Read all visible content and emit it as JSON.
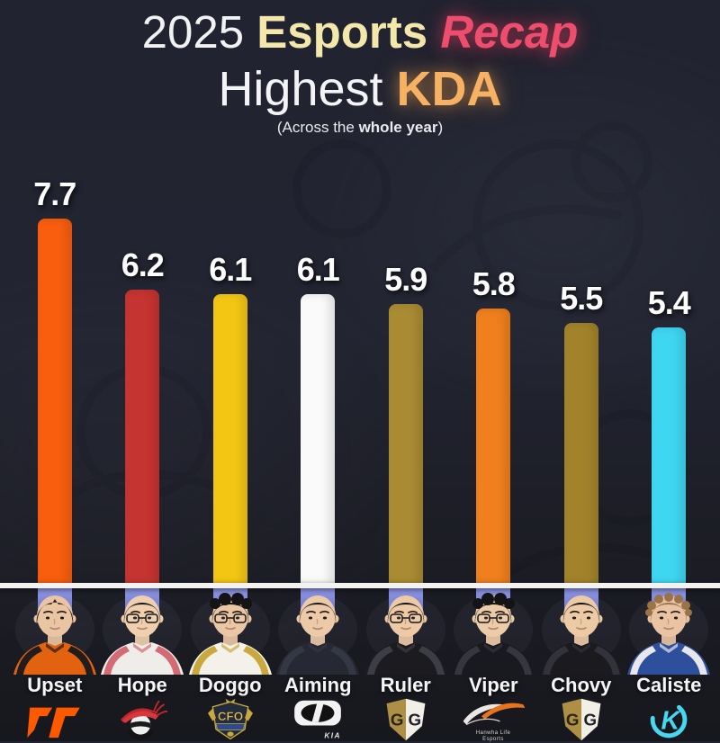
{
  "header": {
    "title_year": "2025",
    "title_word": "Esports",
    "title_accent": "Recap",
    "subtitle_word": "Highest",
    "subtitle_accent": "KDA",
    "note_prefix": "(Across the ",
    "note_bold": "whole year",
    "note_suffix": ")"
  },
  "colors": {
    "background": "#212330",
    "axis_line": "#F4F1F1",
    "title_cream": "#F3E7A9",
    "title_pink": "#EF4D6D",
    "kda_orange": "#F7B163",
    "reflection_blue": "#8F97E6",
    "reflection_blue_dark": "#6F77CE"
  },
  "chart_data": {
    "type": "bar",
    "title": "Highest KDA (Across the whole year)",
    "categories": [
      "Upset",
      "Hope",
      "Doggo",
      "Aiming",
      "Ruler",
      "Viper",
      "Chovy",
      "Caliste"
    ],
    "values": [
      7.7,
      6.2,
      6.1,
      6.1,
      5.9,
      5.8,
      5.5,
      5.4
    ],
    "bar_colors": [
      "#F85E0E",
      "#C53431",
      "#F4C614",
      "#FAFAFA",
      "#A98B33",
      "#F07F1D",
      "#A2832C",
      "#3FD6F2"
    ],
    "xlabel": "",
    "ylabel": "KDA",
    "ylim": [
      0,
      8
    ],
    "grid": false,
    "legend": false,
    "value_labels": true,
    "baseline_axis": "white horizontal line with blue bar reflections below"
  },
  "players": [
    {
      "name": "Upset",
      "value": "7.7",
      "bar_color": "#F85E0E",
      "team_logo": "fnatic-logo",
      "avatar": {
        "hair": "#2E2219",
        "skin": "#E9C5A4",
        "jersey": "#E2620F",
        "accent": "#201d1c",
        "style": "curtain",
        "glasses": false
      }
    },
    {
      "name": "Hope",
      "value": "6.2",
      "bar_color": "#C53431",
      "team_logo": "anyones-legend-logo",
      "avatar": {
        "hair": "#17181A",
        "skin": "#EFCFAE",
        "jersey": "#EFEDEA",
        "accent": "#D46A74",
        "style": "fringe",
        "glasses": true
      }
    },
    {
      "name": "Doggo",
      "value": "6.1",
      "bar_color": "#F4C614",
      "team_logo": "cfo-logo",
      "avatar": {
        "hair": "#141416",
        "skin": "#EAC6A4",
        "jersey": "#F3F1EA",
        "accent": "#C9A83C",
        "style": "fluffy",
        "glasses": true
      }
    },
    {
      "name": "Aiming",
      "value": "6.1",
      "bar_color": "#FAFAFA",
      "team_logo": "dplus-kia-logo",
      "avatar": {
        "hair": "#18181B",
        "skin": "#ECC9A8",
        "jersey": "#262833",
        "accent": "#343744",
        "style": "fringe",
        "glasses": false
      }
    },
    {
      "name": "Ruler",
      "value": "5.9",
      "bar_color": "#A98B33",
      "team_logo": "geng-logo",
      "avatar": {
        "hair": "#141417",
        "skin": "#EDC9A6",
        "jersey": "#1B1B20",
        "accent": "#3d3d46",
        "style": "fringe",
        "glasses": true
      }
    },
    {
      "name": "Viper",
      "value": "5.8",
      "bar_color": "#F07F1D",
      "team_logo": "hanwha-life-logo",
      "avatar": {
        "hair": "#141416",
        "skin": "#ECCBA8",
        "jersey": "#191920",
        "accent": "#36363e",
        "style": "fluffy",
        "glasses": true
      }
    },
    {
      "name": "Chovy",
      "value": "5.5",
      "bar_color": "#A2832C",
      "team_logo": "geng-logo",
      "avatar": {
        "hair": "#121215",
        "skin": "#EDCAA6",
        "jersey": "#1A1A1F",
        "accent": "#32323a",
        "style": "fringe",
        "glasses": false
      }
    },
    {
      "name": "Caliste",
      "value": "5.4",
      "bar_color": "#3FD6F2",
      "team_logo": "karmine-corp-logo",
      "avatar": {
        "hair": "#9A7448",
        "skin": "#E9C3A4",
        "jersey": "#2E4F9C",
        "accent": "#E8E8EC",
        "style": "curly",
        "glasses": false
      }
    }
  ],
  "logo_text": {
    "cfo": "CFO",
    "kia": "KIA",
    "geng_left": "G",
    "geng_right": "G",
    "karmine_k": "K",
    "hanwha_line1": "Hanwha Life",
    "hanwha_line2": "Esports"
  }
}
